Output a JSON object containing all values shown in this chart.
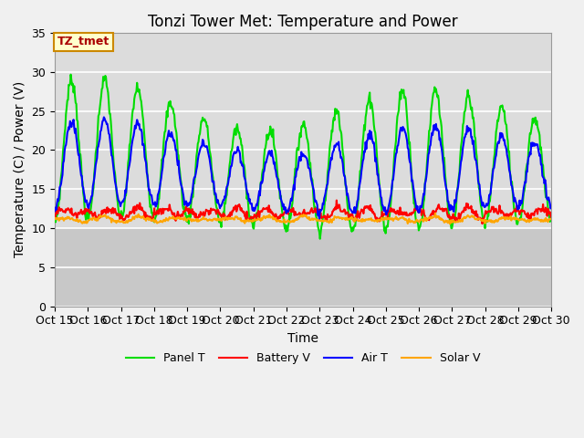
{
  "title": "Tonzi Tower Met: Temperature and Power",
  "xlabel": "Time",
  "ylabel": "Temperature (C) / Power (V)",
  "annotation": "TZ_tmet",
  "ylim": [
    0,
    35
  ],
  "yticks": [
    0,
    5,
    10,
    15,
    20,
    25,
    30,
    35
  ],
  "x_tick_labels": [
    "Oct 15",
    "Oct 16",
    "Oct 17",
    "Oct 18",
    "Oct 19",
    "Oct 20",
    "Oct 21",
    "Oct 22",
    "Oct 23",
    "Oct 24",
    "Oct 25",
    "Oct 26",
    "Oct 27",
    "Oct 28",
    "Oct 29",
    "Oct 30"
  ],
  "colors": {
    "panel_t": "#00DD00",
    "battery_v": "#FF0000",
    "air_t": "#0000FF",
    "solar_v": "#FFA500"
  },
  "legend": [
    "Panel T",
    "Battery V",
    "Air T",
    "Solar V"
  ],
  "plot_bg_upper": "#DCDCDC",
  "plot_bg_lower": "#C8C8C8",
  "grid_color": "#FFFFFF",
  "fig_bg": "#F0F0F0",
  "title_fontsize": 12,
  "axis_fontsize": 10,
  "tick_fontsize": 9,
  "annotation_bg": "#FFFFCC",
  "annotation_border": "#CC8800",
  "annotation_text_color": "#AA0000"
}
